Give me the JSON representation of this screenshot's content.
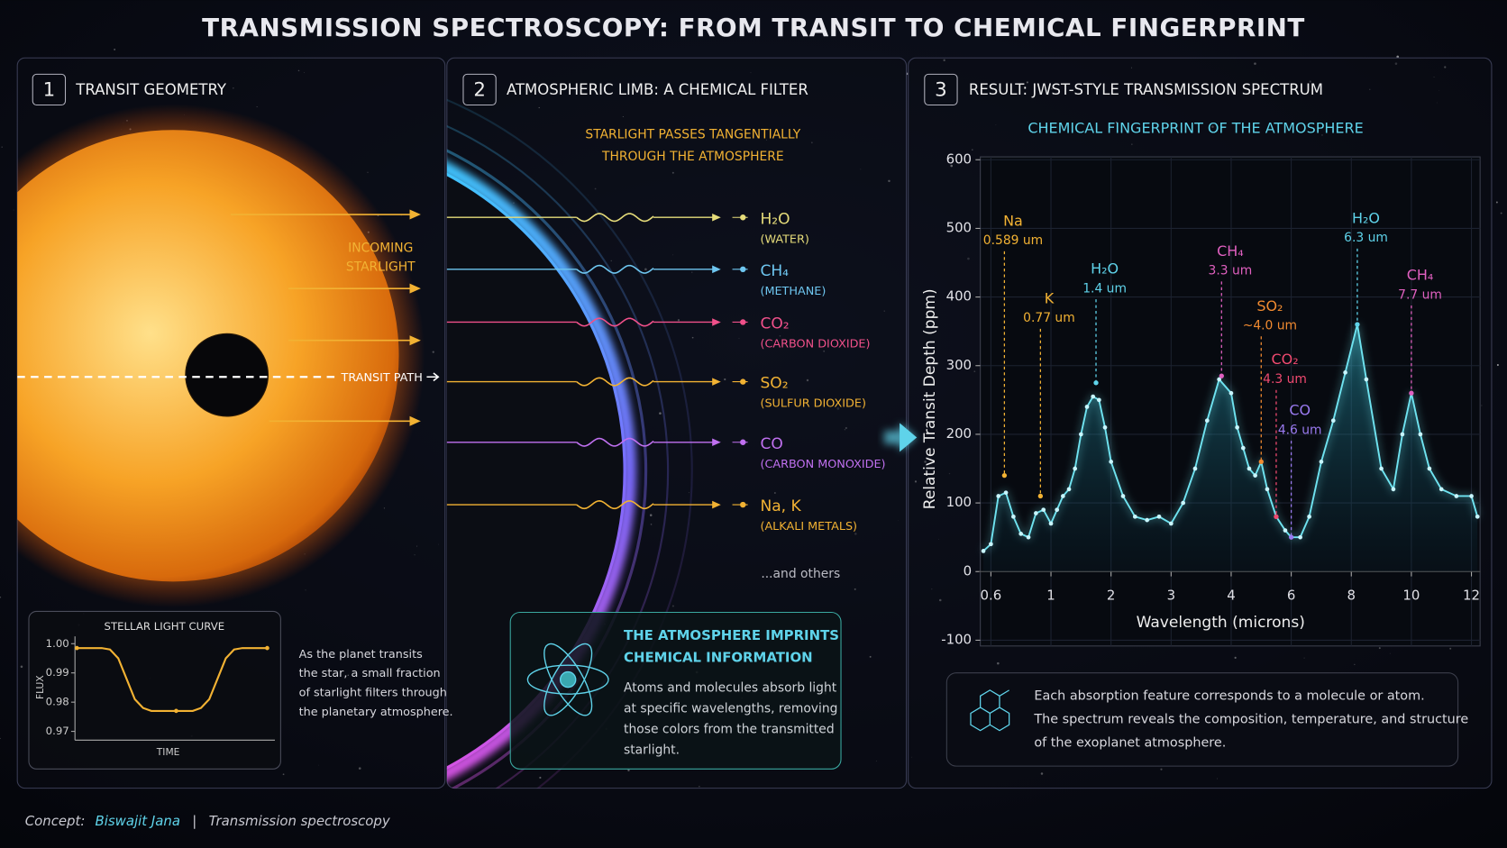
{
  "title": "TRANSMISSION SPECTROSCOPY: FROM TRANSIT TO CHEMICAL FINGERPRINT",
  "panels": [
    {
      "number": "1",
      "heading": "TRANSIT GEOMETRY",
      "starlight": [
        "INCOMING",
        "STARLIGHT"
      ],
      "transit_path": "TRANSIT PATH",
      "caption": [
        "As the planet transits",
        "the star, a small fraction",
        "of starlight filters through",
        "the planetary atmosphere."
      ]
    },
    {
      "number": "2",
      "heading": "ATMOSPHERIC LIMB: A CHEMICAL FILTER",
      "note": [
        "STARLIGHT PASSES TANGENTIALLY",
        "THROUGH THE ATMOSPHERE"
      ],
      "molecules": [
        {
          "name": "H₂O",
          "desc": "(WATER)",
          "color": "#e6dc7a"
        },
        {
          "name": "CH₄",
          "desc": "(METHANE)",
          "color": "#6ec6f0"
        },
        {
          "name": "CO₂",
          "desc": "(CARBON DIOXIDE)",
          "color": "#f0508a"
        },
        {
          "name": "SO₂",
          "desc": "(SULFUR DIOXIDE)",
          "color": "#f2b233"
        },
        {
          "name": "CO",
          "desc": "(CARBON MONOXIDE)",
          "color": "#c070f0"
        },
        {
          "name": "Na, K",
          "desc": "(ALKALI METALS)",
          "color": "#f2b233"
        }
      ],
      "others": "...and others",
      "info_title": [
        "THE ATMOSPHERE IMPRINTS",
        "CHEMICAL INFORMATION"
      ],
      "info_text": [
        "Atoms and molecules absorb light",
        "at specific wavelengths, removing",
        "those colors from the transmitted",
        "starlight."
      ]
    },
    {
      "number": "3",
      "heading": "RESULT: JWST-STYLE TRANSMISSION SPECTRUM",
      "info_text": [
        "Each absorption feature corresponds to a molecule or atom.",
        "The spectrum reveals the composition, temperature, and structure",
        "of the exoplanet atmosphere."
      ]
    }
  ],
  "chart_data": [
    {
      "type": "line",
      "title": "STELLAR LIGHT CURVE",
      "xlabel": "TIME",
      "ylabel": "FLUX",
      "color": "#f2b233",
      "values": [
        0.9985,
        0.9985,
        0.9985,
        0.9985,
        0.998,
        0.995,
        0.988,
        0.981,
        0.978,
        0.977,
        0.977,
        0.977,
        0.977,
        0.977,
        0.977,
        0.978,
        0.981,
        0.988,
        0.995,
        0.998,
        0.9985,
        0.9985,
        0.9985,
        0.9985
      ],
      "ylim": [
        0.967,
        1.0025
      ],
      "yticks": [
        {
          "value": 1,
          "label": "1.00"
        },
        {
          "value": 0.99,
          "label": "0.99"
        },
        {
          "value": 0.98,
          "label": "0.98"
        },
        {
          "value": 0.97,
          "label": "0.97"
        }
      ]
    },
    {
      "type": "line",
      "title": "CHEMICAL FINGERPRINT OF THE ATMOSPHERE",
      "xlabel": "Wavelength (microns)",
      "ylabel": "Relative Transit Depth (ppm)",
      "color": "#6fe3f0",
      "x": [
        0.55,
        0.6,
        0.65,
        0.7,
        0.75,
        0.8,
        0.85,
        0.9,
        0.95,
        1.0,
        1.1,
        1.2,
        1.3,
        1.4,
        1.5,
        1.6,
        1.7,
        1.8,
        1.9,
        2.0,
        2.2,
        2.4,
        2.6,
        2.8,
        3.0,
        3.2,
        3.4,
        3.6,
        3.8,
        4.0,
        4.2,
        4.4,
        4.6,
        4.8,
        5.0,
        5.2,
        5.5,
        5.8,
        6.0,
        6.3,
        6.6,
        7.0,
        7.4,
        7.8,
        8.2,
        8.5,
        9.0,
        9.4,
        9.7,
        10.0,
        10.3,
        10.6,
        11.0,
        11.5,
        12.0,
        12.2
      ],
      "values": [
        30,
        40,
        110,
        115,
        80,
        55,
        50,
        85,
        90,
        70,
        90,
        110,
        120,
        150,
        200,
        240,
        255,
        250,
        210,
        160,
        110,
        80,
        75,
        80,
        70,
        100,
        150,
        220,
        280,
        260,
        210,
        180,
        150,
        140,
        160,
        120,
        80,
        60,
        50,
        50,
        80,
        160,
        220,
        290,
        360,
        280,
        150,
        120,
        200,
        260,
        200,
        150,
        120,
        110,
        110,
        80
      ],
      "xlim": [
        0.52,
        12.3
      ],
      "xticks": [
        0.6,
        1,
        2,
        3,
        4,
        6,
        8,
        10,
        12
      ],
      "ylim": [
        -100,
        600
      ],
      "yticks": [
        -100,
        0,
        100,
        200,
        300,
        400,
        500,
        600
      ],
      "annotations": [
        {
          "label": "Na",
          "sublabel": "0.589 um",
          "x": 0.69,
          "y": 140,
          "label_y": 510,
          "color": "#f2b233"
        },
        {
          "label": "K",
          "sublabel": "0.77 um",
          "x": 0.93,
          "y": 110,
          "label_y": 397,
          "color": "#f2b233"
        },
        {
          "label": "H₂O",
          "sublabel": "1.4 um",
          "x": 1.75,
          "y": 275,
          "label_y": 440,
          "color": "#5fd3ea"
        },
        {
          "label": "CH₄",
          "sublabel": "3.3 um",
          "x": 3.84,
          "y": 285,
          "label_y": 466,
          "color": "#e060c0"
        },
        {
          "label": "SO₂",
          "sublabel": "~4.0 um",
          "x": 5.0,
          "y": 160,
          "label_y": 386,
          "color": "#f08a30"
        },
        {
          "label": "CO₂",
          "sublabel": "4.3 um",
          "x": 5.5,
          "y": 80,
          "label_y": 308,
          "color": "#f04a70"
        },
        {
          "label": "CO",
          "sublabel": "4.6 um",
          "x": 6.0,
          "y": 50,
          "label_y": 234,
          "color": "#9a7af0"
        },
        {
          "label": "H₂O",
          "sublabel": "6.3 um",
          "x": 8.2,
          "y": 360,
          "label_y": 514,
          "color": "#5fd3ea"
        },
        {
          "label": "CH₄",
          "sublabel": "7.7 um",
          "x": 10.0,
          "y": 260,
          "label_y": 431,
          "color": "#e060c0"
        }
      ]
    }
  ],
  "footer": {
    "concept": "Concept:",
    "author": "Biswajit Jana",
    "separator": "|",
    "topic": "Transmission spectroscopy"
  }
}
